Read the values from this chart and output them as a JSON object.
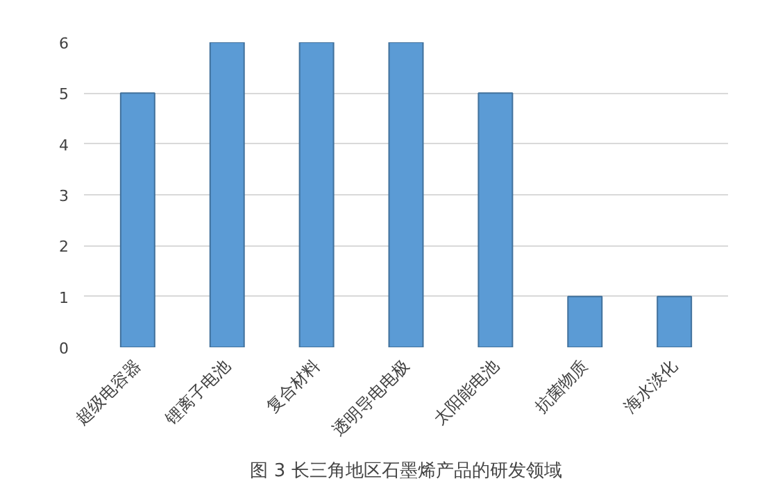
{
  "chart_data": {
    "type": "bar",
    "title": "图 3 长三角地区石墨烯产品的研发领域",
    "categories": [
      "超级电容器",
      "锂离子电池",
      "复合材料",
      "透明导电电极",
      "太阳能电池",
      "抗菌物质",
      "海水淡化"
    ],
    "values": [
      5,
      6,
      6,
      6,
      5,
      1,
      1
    ],
    "color": "#5b9bd5",
    "ylim": [
      0,
      6
    ],
    "yticks": [
      0,
      1,
      2,
      3,
      4,
      5,
      6
    ],
    "grid": "y"
  }
}
